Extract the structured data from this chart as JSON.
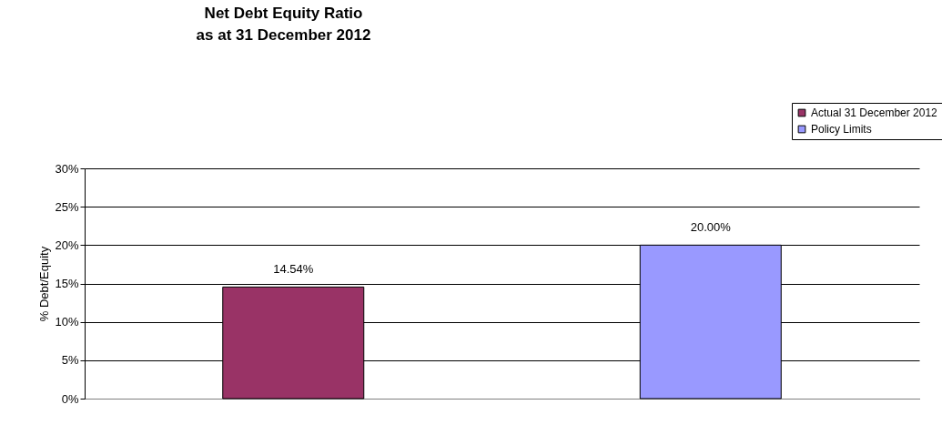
{
  "chart_data": {
    "type": "bar",
    "title": "Net Debt Equity Ratio\nas at 31 December 2012",
    "ylabel": "% Debt/Equity",
    "categories": [
      null,
      null
    ],
    "series": [
      {
        "name": "Actual 31 December 2012",
        "color": "#993366",
        "values": [
          14.54,
          null
        ],
        "value_labels": [
          "14.54%",
          null
        ]
      },
      {
        "name": "Policy Limits",
        "color": "#9999ff",
        "values": [
          null,
          20.0
        ],
        "value_labels": [
          null,
          "20.00%"
        ]
      }
    ],
    "ylim": [
      0,
      30
    ],
    "yticks": [
      {
        "value": 0,
        "label": "0%"
      },
      {
        "value": 5,
        "label": "5%"
      },
      {
        "value": 10,
        "label": "10%"
      },
      {
        "value": 15,
        "label": "15%"
      },
      {
        "value": 20,
        "label": "20%"
      },
      {
        "value": 25,
        "label": "25%"
      },
      {
        "value": 30,
        "label": "30%"
      }
    ],
    "grid": "y",
    "legend": "top right",
    "tick_labels": "y"
  }
}
